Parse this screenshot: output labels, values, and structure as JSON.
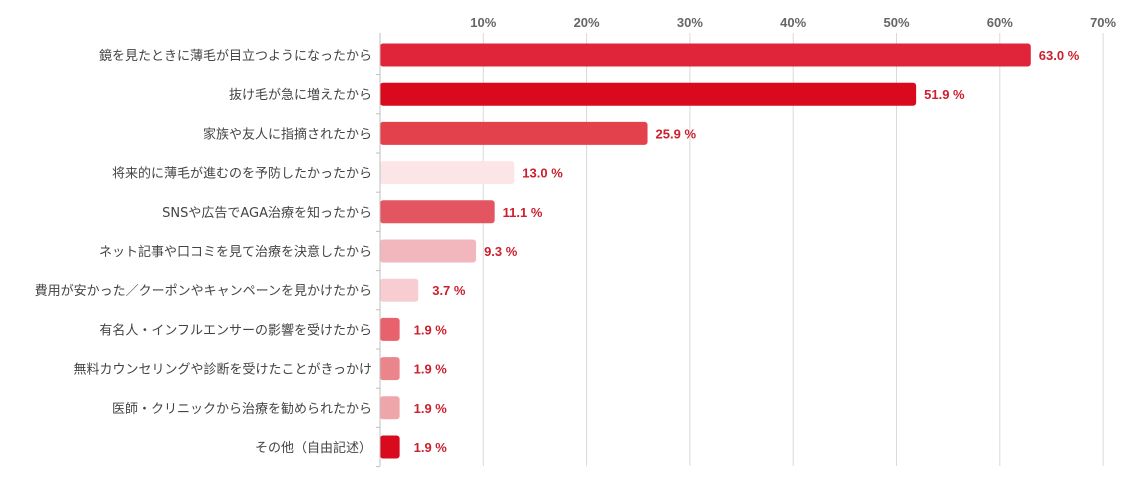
{
  "chart_data": {
    "type": "bar",
    "orientation": "horizontal",
    "categories": [
      "鏡を見たときに薄毛が目立つようになったから",
      "抜け毛が急に増えたから",
      "家族や友人に指摘されたから",
      "将来的に薄毛が進むのを予防したかったから",
      "SNSや広告でAGA治療を知ったから",
      "ネット記事や口コミを見て治療を決意したから",
      "費用が安かった／クーポンやキャンペーンを見かけたから",
      "有名人・インフルエンサーの影響を受けたから",
      "無料カウンセリングや診断を受けたことがきっかけ",
      "医師・クリニックから治療を勧められたから",
      "その他（自由記述）"
    ],
    "values": [
      63.0,
      51.9,
      25.9,
      13.0,
      11.1,
      9.3,
      3.7,
      1.9,
      1.9,
      1.9,
      1.9
    ],
    "value_labels": [
      "63.0 %",
      "51.9 %",
      "25.9 %",
      "13.0 %",
      "11.1 %",
      "9.3 %",
      "3.7 %",
      "1.9 %",
      "1.9 %",
      "1.9 %",
      "1.9 %"
    ],
    "colors": [
      "#e0253a",
      "#d90a1e",
      "#e3424d",
      "#fbe5e7",
      "#e35561",
      "#f2b7bc",
      "#f7cdd1",
      "#e8626d",
      "#ea858c",
      "#efa6ab",
      "#d90a1e"
    ],
    "xlim": [
      0,
      70
    ],
    "xticks": [
      10,
      20,
      30,
      40,
      50,
      60,
      70
    ],
    "xtick_labels": [
      "10%",
      "20%",
      "30%",
      "40%",
      "50%",
      "60%",
      "70%"
    ],
    "xaxis_position": "top",
    "grid": true,
    "legend": "none",
    "title": "",
    "xlabel": "",
    "ylabel": ""
  }
}
